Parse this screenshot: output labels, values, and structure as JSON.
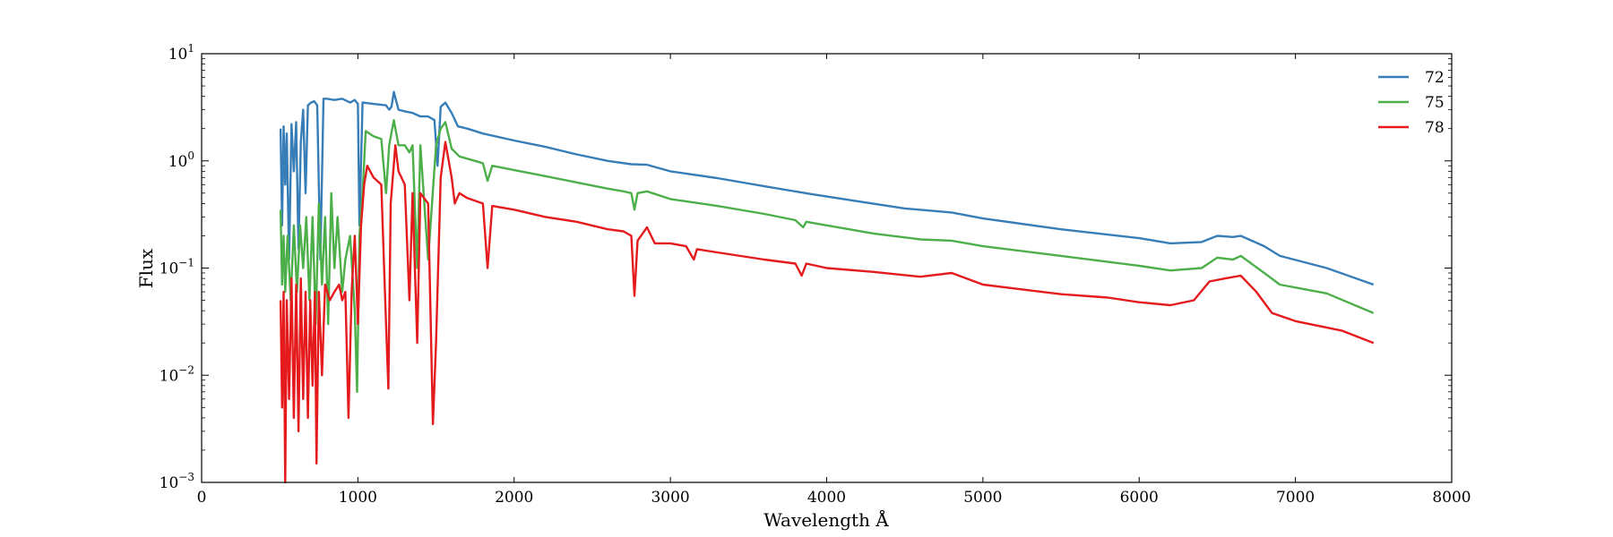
{
  "chart_data": {
    "type": "line",
    "title": "",
    "xlabel": "Wavelength Å",
    "ylabel": "Flux",
    "xlim": [
      0,
      8000
    ],
    "ylim": [
      0.001,
      10
    ],
    "yscale": "log",
    "grid": false,
    "legend_position": "top-right",
    "x_ticks": [
      0,
      1000,
      2000,
      3000,
      4000,
      5000,
      6000,
      7000,
      8000
    ],
    "y_ticks": [
      {
        "value": 0.001,
        "base": "10",
        "exp": "−3"
      },
      {
        "value": 0.01,
        "base": "10",
        "exp": "−2"
      },
      {
        "value": 0.1,
        "base": "10",
        "exp": "−1"
      },
      {
        "value": 1,
        "base": "10",
        "exp": "0"
      },
      {
        "value": 10,
        "base": "10",
        "exp": "1"
      }
    ],
    "series": [
      {
        "name": "72",
        "color": "#377eb8",
        "points": [
          [
            505,
            2.0
          ],
          [
            515,
            0.25
          ],
          [
            525,
            2.1
          ],
          [
            535,
            0.6
          ],
          [
            545,
            1.8
          ],
          [
            560,
            0.12
          ],
          [
            575,
            2.2
          ],
          [
            590,
            0.8
          ],
          [
            605,
            2.3
          ],
          [
            620,
            0.15
          ],
          [
            635,
            1.5
          ],
          [
            650,
            3.0
          ],
          [
            665,
            0.5
          ],
          [
            680,
            3.3
          ],
          [
            700,
            3.5
          ],
          [
            720,
            3.6
          ],
          [
            740,
            3.3
          ],
          [
            760,
            0.12
          ],
          [
            780,
            3.8
          ],
          [
            800,
            3.8
          ],
          [
            850,
            3.7
          ],
          [
            900,
            3.8
          ],
          [
            950,
            3.5
          ],
          [
            980,
            3.7
          ],
          [
            1000,
            3.4
          ],
          [
            1010,
            0.25
          ],
          [
            1030,
            3.5
          ],
          [
            1100,
            3.4
          ],
          [
            1180,
            3.3
          ],
          [
            1200,
            3.0
          ],
          [
            1215,
            3.2
          ],
          [
            1230,
            4.4
          ],
          [
            1260,
            3.0
          ],
          [
            1300,
            2.9
          ],
          [
            1350,
            2.8
          ],
          [
            1400,
            2.6
          ],
          [
            1450,
            2.6
          ],
          [
            1490,
            2.4
          ],
          [
            1510,
            0.9
          ],
          [
            1530,
            3.2
          ],
          [
            1560,
            3.5
          ],
          [
            1600,
            2.8
          ],
          [
            1640,
            2.1
          ],
          [
            1700,
            2.0
          ],
          [
            1800,
            1.8
          ],
          [
            2000,
            1.55
          ],
          [
            2200,
            1.35
          ],
          [
            2400,
            1.15
          ],
          [
            2600,
            1.0
          ],
          [
            2750,
            0.93
          ],
          [
            2850,
            0.92
          ],
          [
            3000,
            0.8
          ],
          [
            3300,
            0.69
          ],
          [
            3600,
            0.58
          ],
          [
            3900,
            0.49
          ],
          [
            4200,
            0.42
          ],
          [
            4500,
            0.36
          ],
          [
            4800,
            0.33
          ],
          [
            5000,
            0.29
          ],
          [
            5500,
            0.23
          ],
          [
            6000,
            0.19
          ],
          [
            6200,
            0.17
          ],
          [
            6400,
            0.175
          ],
          [
            6500,
            0.2
          ],
          [
            6600,
            0.195
          ],
          [
            6650,
            0.2
          ],
          [
            6800,
            0.16
          ],
          [
            6900,
            0.13
          ],
          [
            7200,
            0.1
          ],
          [
            7500,
            0.07
          ]
        ]
      },
      {
        "name": "75",
        "color": "#4daf4a",
        "points": [
          [
            505,
            0.35
          ],
          [
            515,
            0.07
          ],
          [
            525,
            0.2
          ],
          [
            535,
            0.06
          ],
          [
            550,
            0.2
          ],
          [
            570,
            0.05
          ],
          [
            590,
            0.25
          ],
          [
            610,
            0.06
          ],
          [
            630,
            0.25
          ],
          [
            650,
            0.1
          ],
          [
            670,
            0.3
          ],
          [
            690,
            0.05
          ],
          [
            710,
            0.3
          ],
          [
            730,
            0.03
          ],
          [
            750,
            0.4
          ],
          [
            770,
            0.07
          ],
          [
            790,
            0.3
          ],
          [
            810,
            0.03
          ],
          [
            830,
            0.5
          ],
          [
            850,
            0.1
          ],
          [
            870,
            0.3
          ],
          [
            900,
            0.06
          ],
          [
            920,
            0.12
          ],
          [
            950,
            0.2
          ],
          [
            980,
            0.04
          ],
          [
            995,
            0.007
          ],
          [
            1010,
            0.2
          ],
          [
            1030,
            0.5
          ],
          [
            1050,
            1.9
          ],
          [
            1100,
            1.7
          ],
          [
            1150,
            1.6
          ],
          [
            1180,
            0.5
          ],
          [
            1200,
            1.4
          ],
          [
            1230,
            2.4
          ],
          [
            1260,
            1.4
          ],
          [
            1300,
            1.4
          ],
          [
            1330,
            1.2
          ],
          [
            1350,
            1.4
          ],
          [
            1380,
            0.1
          ],
          [
            1400,
            1.4
          ],
          [
            1450,
            0.12
          ],
          [
            1500,
            1.4
          ],
          [
            1530,
            2.0
          ],
          [
            1560,
            2.3
          ],
          [
            1600,
            1.3
          ],
          [
            1650,
            1.1
          ],
          [
            1750,
            1.0
          ],
          [
            1800,
            0.95
          ],
          [
            1830,
            0.65
          ],
          [
            1860,
            0.9
          ],
          [
            2000,
            0.82
          ],
          [
            2200,
            0.72
          ],
          [
            2400,
            0.63
          ],
          [
            2600,
            0.55
          ],
          [
            2700,
            0.52
          ],
          [
            2750,
            0.5
          ],
          [
            2770,
            0.35
          ],
          [
            2790,
            0.5
          ],
          [
            2850,
            0.52
          ],
          [
            3000,
            0.44
          ],
          [
            3300,
            0.38
          ],
          [
            3600,
            0.32
          ],
          [
            3800,
            0.28
          ],
          [
            3850,
            0.24
          ],
          [
            3870,
            0.27
          ],
          [
            4000,
            0.25
          ],
          [
            4300,
            0.21
          ],
          [
            4600,
            0.185
          ],
          [
            4800,
            0.18
          ],
          [
            5000,
            0.16
          ],
          [
            5500,
            0.13
          ],
          [
            6000,
            0.105
          ],
          [
            6200,
            0.095
          ],
          [
            6400,
            0.1
          ],
          [
            6500,
            0.125
          ],
          [
            6600,
            0.12
          ],
          [
            6650,
            0.13
          ],
          [
            6800,
            0.09
          ],
          [
            6900,
            0.07
          ],
          [
            7200,
            0.058
          ],
          [
            7500,
            0.038
          ]
        ]
      },
      {
        "name": "78",
        "color": "#e41a1c",
        "points": [
          [
            505,
            0.05
          ],
          [
            515,
            0.005
          ],
          [
            525,
            0.06
          ],
          [
            535,
            0.001
          ],
          [
            545,
            0.05
          ],
          [
            560,
            0.006
          ],
          [
            575,
            0.08
          ],
          [
            590,
            0.004
          ],
          [
            605,
            0.07
          ],
          [
            620,
            0.003
          ],
          [
            635,
            0.08
          ],
          [
            650,
            0.006
          ],
          [
            665,
            0.06
          ],
          [
            680,
            0.004
          ],
          [
            695,
            0.05
          ],
          [
            710,
            0.008
          ],
          [
            725,
            0.06
          ],
          [
            735,
            0.0015
          ],
          [
            750,
            0.06
          ],
          [
            770,
            0.01
          ],
          [
            790,
            0.07
          ],
          [
            820,
            0.05
          ],
          [
            850,
            0.06
          ],
          [
            880,
            0.07
          ],
          [
            900,
            0.05
          ],
          [
            920,
            0.06
          ],
          [
            940,
            0.004
          ],
          [
            960,
            0.06
          ],
          [
            980,
            0.2
          ],
          [
            1000,
            0.03
          ],
          [
            1020,
            0.25
          ],
          [
            1040,
            0.6
          ],
          [
            1060,
            0.9
          ],
          [
            1100,
            0.7
          ],
          [
            1150,
            0.6
          ],
          [
            1180,
            0.03
          ],
          [
            1195,
            0.0075
          ],
          [
            1210,
            0.4
          ],
          [
            1240,
            1.4
          ],
          [
            1260,
            0.8
          ],
          [
            1300,
            0.6
          ],
          [
            1330,
            0.05
          ],
          [
            1350,
            0.5
          ],
          [
            1380,
            0.02
          ],
          [
            1400,
            0.5
          ],
          [
            1450,
            0.4
          ],
          [
            1480,
            0.0035
          ],
          [
            1500,
            0.02
          ],
          [
            1530,
            0.7
          ],
          [
            1560,
            1.5
          ],
          [
            1600,
            0.7
          ],
          [
            1620,
            0.4
          ],
          [
            1650,
            0.5
          ],
          [
            1700,
            0.45
          ],
          [
            1800,
            0.4
          ],
          [
            1830,
            0.1
          ],
          [
            1860,
            0.38
          ],
          [
            2000,
            0.35
          ],
          [
            2200,
            0.3
          ],
          [
            2400,
            0.27
          ],
          [
            2600,
            0.23
          ],
          [
            2700,
            0.22
          ],
          [
            2750,
            0.2
          ],
          [
            2770,
            0.055
          ],
          [
            2790,
            0.18
          ],
          [
            2850,
            0.24
          ],
          [
            2900,
            0.17
          ],
          [
            3000,
            0.17
          ],
          [
            3100,
            0.16
          ],
          [
            3150,
            0.12
          ],
          [
            3170,
            0.15
          ],
          [
            3300,
            0.14
          ],
          [
            3600,
            0.12
          ],
          [
            3800,
            0.11
          ],
          [
            3840,
            0.085
          ],
          [
            3870,
            0.11
          ],
          [
            4000,
            0.1
          ],
          [
            4300,
            0.092
          ],
          [
            4600,
            0.083
          ],
          [
            4800,
            0.09
          ],
          [
            5000,
            0.07
          ],
          [
            5500,
            0.057
          ],
          [
            5800,
            0.053
          ],
          [
            6000,
            0.048
          ],
          [
            6200,
            0.045
          ],
          [
            6350,
            0.05
          ],
          [
            6450,
            0.075
          ],
          [
            6550,
            0.08
          ],
          [
            6650,
            0.085
          ],
          [
            6750,
            0.06
          ],
          [
            6850,
            0.038
          ],
          [
            7000,
            0.032
          ],
          [
            7300,
            0.026
          ],
          [
            7500,
            0.02
          ]
        ]
      }
    ]
  }
}
